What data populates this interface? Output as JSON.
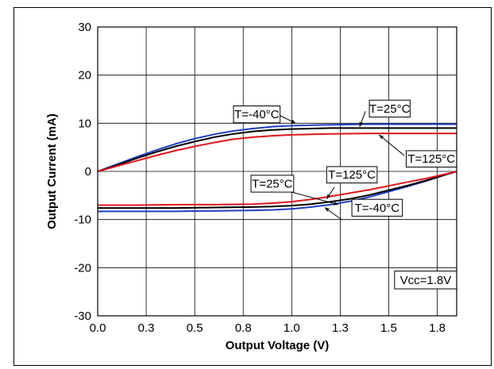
{
  "chart_data": {
    "type": "line",
    "title": "",
    "xlabel": "Output Voltage (V)",
    "ylabel": "Output Current (mA)",
    "xlim": [
      0.0,
      1.85
    ],
    "ylim": [
      -30,
      30
    ],
    "x_ticks": [
      0.0,
      0.25,
      0.5,
      0.75,
      1.0,
      1.25,
      1.5,
      1.75
    ],
    "x_tick_labels": [
      "0.0",
      "0.3",
      "0.5",
      "0.8",
      "1.0",
      "1.3",
      "1.5",
      "1.8"
    ],
    "y_ticks": [
      -30,
      -20,
      -10,
      0,
      10,
      20,
      30
    ],
    "y_tick_labels": [
      "-30",
      "-20",
      "-10",
      "0",
      "10",
      "20",
      "30"
    ],
    "grid": true,
    "legend": "none",
    "colors": {
      "minus40": "#1f3fbf",
      "plus25": "#000000",
      "plus125": "#e0151b"
    },
    "series": [
      {
        "name": "T=-40°C",
        "color": "#1f3fbf",
        "x": [
          0.0,
          0.1,
          0.2,
          0.3,
          0.4,
          0.5,
          0.6,
          0.7,
          0.8,
          0.9,
          1.0,
          1.1,
          1.2,
          1.4,
          1.6,
          1.85
        ],
        "y": [
          0.0,
          1.5,
          3.0,
          4.4,
          5.7,
          6.8,
          7.7,
          8.4,
          8.9,
          9.3,
          9.5,
          9.6,
          9.7,
          9.8,
          9.8,
          9.8
        ]
      },
      {
        "name": "T=25°C",
        "color": "#000000",
        "x": [
          0.0,
          0.1,
          0.2,
          0.3,
          0.4,
          0.5,
          0.6,
          0.7,
          0.8,
          0.9,
          1.0,
          1.1,
          1.2,
          1.4,
          1.6,
          1.85
        ],
        "y": [
          0.0,
          1.3,
          2.7,
          4.0,
          5.2,
          6.2,
          7.1,
          7.8,
          8.3,
          8.6,
          8.8,
          8.9,
          9.0,
          9.0,
          9.0,
          9.0
        ]
      },
      {
        "name": "T=125°C",
        "color": "#e0151b",
        "x": [
          0.0,
          0.1,
          0.2,
          0.3,
          0.4,
          0.5,
          0.6,
          0.7,
          0.8,
          0.9,
          1.0,
          1.1,
          1.2,
          1.4,
          1.6,
          1.85
        ],
        "y": [
          0.0,
          1.1,
          2.2,
          3.3,
          4.3,
          5.2,
          6.0,
          6.7,
          7.1,
          7.4,
          7.6,
          7.7,
          7.8,
          7.9,
          7.9,
          7.9
        ]
      },
      {
        "name": "T=-40°C",
        "color": "#1f3fbf",
        "x": [
          0.0,
          0.2,
          0.4,
          0.6,
          0.8,
          0.9,
          1.0,
          1.1,
          1.2,
          1.3,
          1.4,
          1.5,
          1.6,
          1.7,
          1.8,
          1.85
        ],
        "y": [
          -8.3,
          -8.3,
          -8.3,
          -8.2,
          -8.1,
          -8.0,
          -7.8,
          -7.4,
          -6.9,
          -6.2,
          -5.3,
          -4.2,
          -3.1,
          -1.9,
          -0.6,
          0.0
        ]
      },
      {
        "name": "T=25°C",
        "color": "#000000",
        "x": [
          0.0,
          0.2,
          0.4,
          0.6,
          0.8,
          0.9,
          1.0,
          1.1,
          1.2,
          1.3,
          1.4,
          1.5,
          1.6,
          1.7,
          1.8,
          1.85
        ],
        "y": [
          -7.6,
          -7.6,
          -7.6,
          -7.5,
          -7.4,
          -7.3,
          -7.1,
          -6.8,
          -6.3,
          -5.7,
          -4.9,
          -3.9,
          -2.9,
          -1.8,
          -0.6,
          0.0
        ]
      },
      {
        "name": "T=125°C",
        "color": "#e0151b",
        "x": [
          0.0,
          0.2,
          0.4,
          0.6,
          0.8,
          0.9,
          1.0,
          1.1,
          1.2,
          1.3,
          1.4,
          1.5,
          1.6,
          1.7,
          1.8,
          1.85
        ],
        "y": [
          -7.0,
          -7.0,
          -6.9,
          -6.9,
          -6.8,
          -6.6,
          -6.3,
          -5.8,
          -5.2,
          -4.5,
          -3.8,
          -3.0,
          -2.2,
          -1.4,
          -0.5,
          0.0
        ]
      }
    ],
    "annotations": [
      {
        "text": "T=-40°C",
        "box": {
          "x0": 0.7,
          "x1": 0.94,
          "y0": 10.1,
          "y1": 13.6
        },
        "arrow": {
          "from": [
            0.94,
            11.6
          ],
          "to": [
            1.02,
            10.0
          ]
        }
      },
      {
        "text": "T=25°C",
        "box": {
          "x0": 1.4,
          "x1": 1.61,
          "y0": 11.3,
          "y1": 14.8
        },
        "arrow": {
          "from": [
            1.38,
            12.5
          ],
          "to": [
            1.35,
            9.3
          ]
        }
      },
      {
        "text": "T=125°C",
        "box": {
          "x0": 1.59,
          "x1": 1.85,
          "y0": 0.9,
          "y1": 4.3
        },
        "arrow": {
          "from": [
            1.58,
            3.3
          ],
          "to": [
            1.45,
            7.6
          ]
        }
      },
      {
        "text": "T=125°C",
        "box": {
          "x0": 1.18,
          "x1": 1.44,
          "y0": -2.4,
          "y1": 1.0
        },
        "arrow": {
          "from": [
            1.22,
            -3.3
          ],
          "to": [
            1.18,
            -5.7
          ]
        }
      },
      {
        "text": "T=25°C",
        "box": {
          "x0": 0.79,
          "x1": 1.01,
          "y0": -4.3,
          "y1": -0.8
        },
        "arrow": {
          "from": [
            1.0,
            -4.3
          ],
          "to": [
            1.24,
            -6.9
          ]
        }
      },
      {
        "text": "T=-40°C",
        "box": {
          "x0": 1.31,
          "x1": 1.57,
          "y0": -9.3,
          "y1": -5.8
        },
        "arrow": {
          "from": [
            1.26,
            -10.1
          ],
          "to": [
            1.17,
            -7.5
          ]
        }
      },
      {
        "text": "Vcc=1.8V",
        "box": {
          "x0": 1.53,
          "x1": 1.85,
          "y0": -24.4,
          "y1": -20.7
        }
      }
    ]
  }
}
